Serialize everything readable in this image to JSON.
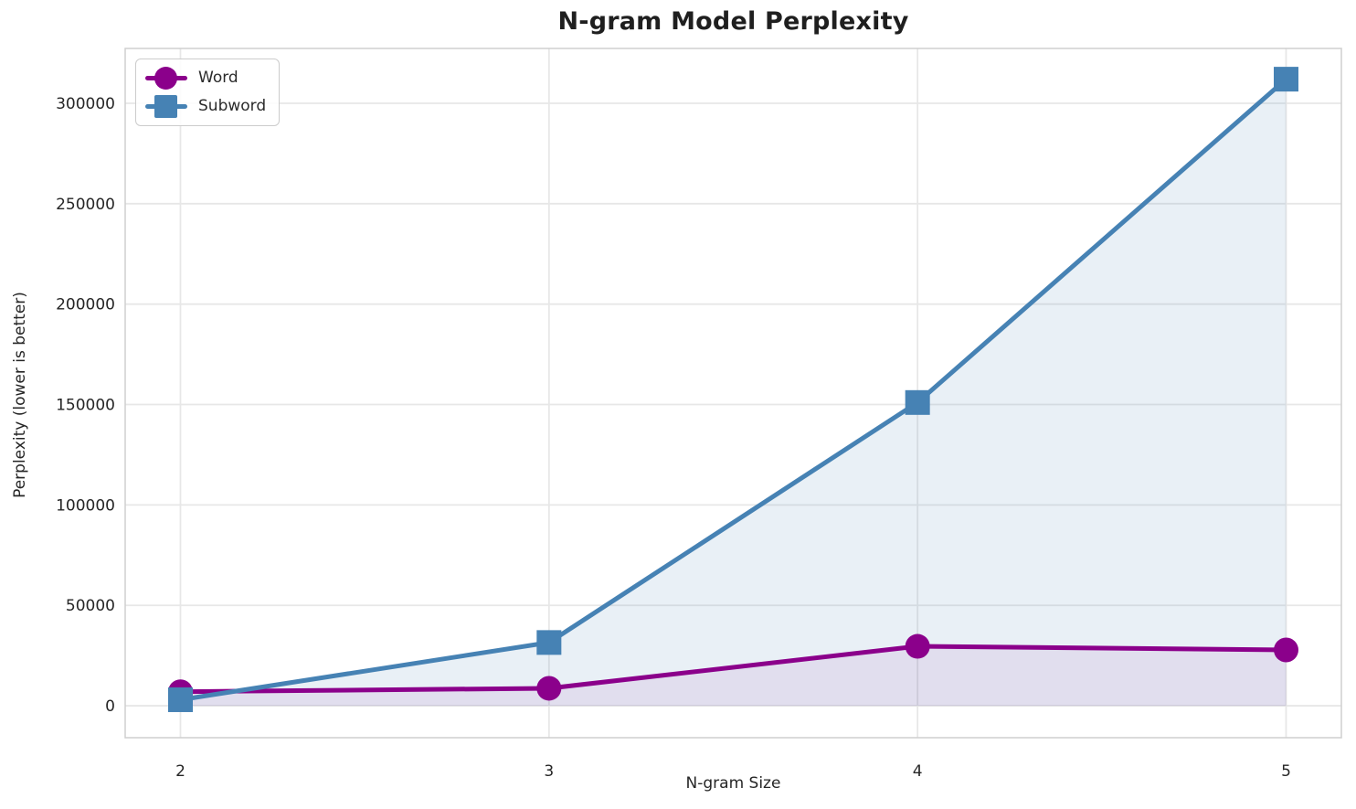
{
  "chart_data": {
    "type": "line",
    "title": "N-gram Model Perplexity",
    "xlabel": "N-gram Size",
    "ylabel": "Perplexity (lower is better)",
    "x": [
      2,
      3,
      4,
      5
    ],
    "x_tick_labels": [
      "2",
      "3",
      "4",
      "5"
    ],
    "series": [
      {
        "name": "Word",
        "values": [
          7000,
          8700,
          29600,
          27800
        ],
        "color": "#8B008B",
        "marker": "circle",
        "fill_to_zero": true,
        "fill_opacity": 0.08
      },
      {
        "name": "Subword",
        "values": [
          3000,
          31500,
          151000,
          312000
        ],
        "color": "#4682B4",
        "marker": "square",
        "fill_to_zero": true,
        "fill_opacity": 0.12
      }
    ],
    "yticks": [
      0,
      50000,
      100000,
      150000,
      200000,
      250000,
      300000
    ],
    "ytick_labels": [
      "0",
      "50000",
      "100000",
      "150000",
      "200000",
      "250000",
      "300000"
    ],
    "xlim": [
      1.85,
      5.15
    ],
    "ylim": [
      -15900,
      327300
    ],
    "grid": true,
    "legend_position": "upper-left",
    "line_width": 5,
    "marker_size": 27,
    "colors": {
      "grid": "#e7e7e7",
      "spine": "#cfcfcf",
      "text": "#262626",
      "background": "#ffffff"
    }
  }
}
